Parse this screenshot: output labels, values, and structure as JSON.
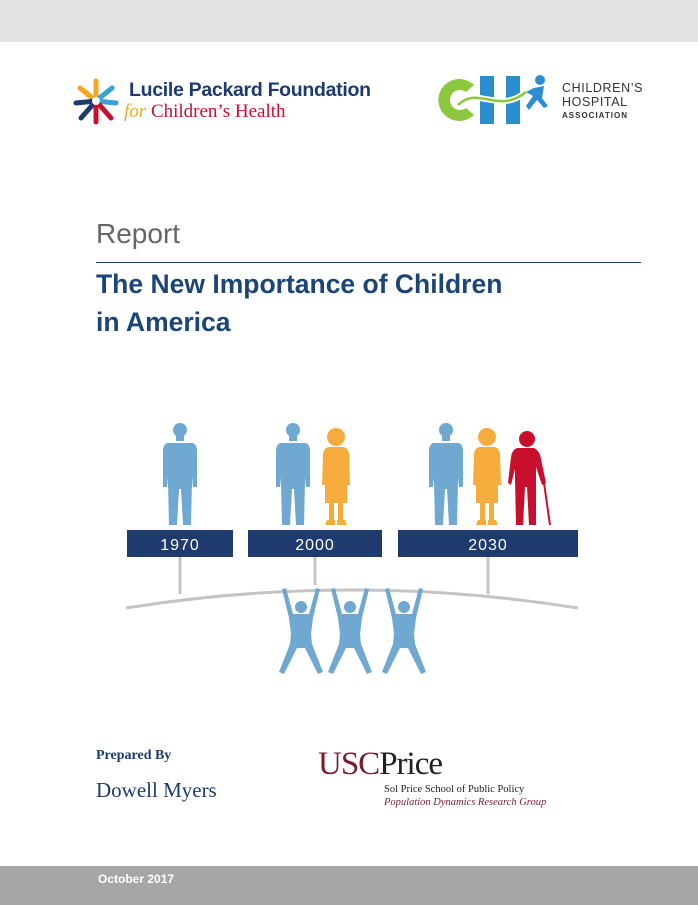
{
  "header": {
    "left_logo": {
      "name_line1": "Lucile Packard Foundation",
      "name_line2_for": "for",
      "name_line2_rest": " Children’s Health",
      "icon": "star-burst-logo-icon"
    },
    "right_logo": {
      "monogram": "CH",
      "line1": "CHILDREN’S",
      "line2": "HOSPITAL",
      "line3": "ASSOCIATION",
      "icon": "cha-monogram-icon"
    }
  },
  "report": {
    "label": "Report",
    "title_line1": "The New Importance of Children",
    "title_line2": "in America"
  },
  "illustration": {
    "years": [
      "1970",
      "2000",
      "2030"
    ],
    "colors": {
      "adult": "#6fa8d0",
      "senior": "#f5ac3c",
      "elder": "#c8102e",
      "year_box": "#1f3b6e",
      "beam": "#c4c4c4",
      "child": "#6fa8d0"
    }
  },
  "footer": {
    "prepared_label": "Prepared By",
    "author": "Dowell Myers",
    "usc_logo": {
      "usc": "USC",
      "price": "Price",
      "sub1": "Sol Price School of Public Policy",
      "sub2": "Population Dynamics Research Group"
    },
    "date": "October 2017"
  }
}
